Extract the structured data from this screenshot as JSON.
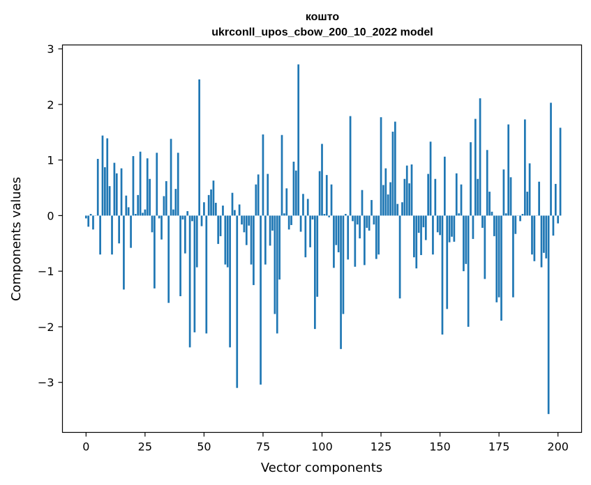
{
  "chart_data": {
    "type": "bar",
    "title_line1": "кошто",
    "title_line2": "ukrconll_upos_cbow_200_10_2022 model",
    "xlabel": "Vector components",
    "ylabel": "Components values",
    "xlim": [
      -10,
      210
    ],
    "ylim": [
      -3.9,
      3.07
    ],
    "xticks": [
      0,
      25,
      50,
      75,
      100,
      125,
      150,
      175,
      200
    ],
    "yticks": [
      -3,
      -2,
      -1,
      0,
      1,
      2,
      3
    ],
    "ytick_labels": [
      "−3",
      "−2",
      "−1",
      "0",
      "1",
      "2",
      "3"
    ],
    "bar_color": "#1f77b4",
    "grid": false,
    "values": [
      -0.05,
      -0.2,
      0.03,
      -0.25,
      0.0,
      1.02,
      -0.7,
      1.44,
      0.87,
      1.39,
      0.53,
      -0.7,
      0.95,
      0.76,
      -0.5,
      0.85,
      -1.33,
      0.36,
      0.15,
      -0.58,
      1.07,
      0.03,
      0.37,
      1.15,
      0.05,
      0.11,
      1.03,
      0.66,
      -0.3,
      -1.31,
      1.13,
      -0.05,
      -0.43,
      0.35,
      0.62,
      -1.57,
      1.38,
      0.11,
      0.48,
      1.13,
      -1.45,
      -0.07,
      -0.68,
      0.08,
      -2.37,
      -0.1,
      -2.1,
      -0.93,
      2.45,
      -0.19,
      0.24,
      -2.12,
      0.37,
      0.47,
      0.63,
      0.23,
      -0.51,
      -0.37,
      0.18,
      -0.88,
      -0.93,
      -2.37,
      0.41,
      0.1,
      -3.1,
      0.2,
      -0.16,
      -0.3,
      -0.53,
      -0.18,
      -0.88,
      -1.25,
      0.56,
      0.74,
      -3.04,
      1.46,
      -0.88,
      0.75,
      -0.54,
      -0.27,
      -1.77,
      -2.12,
      -1.15,
      1.45,
      0.04,
      0.49,
      -0.25,
      -0.17,
      0.97,
      0.81,
      2.72,
      -0.29,
      0.39,
      -0.75,
      0.3,
      -0.57,
      -0.07,
      -2.04,
      -1.46,
      0.8,
      1.29,
      0.03,
      0.73,
      -0.03,
      0.56,
      -0.94,
      -0.53,
      -0.66,
      -2.4,
      -1.77,
      0.03,
      -0.79,
      1.79,
      -0.1,
      -0.92,
      -0.16,
      -0.41,
      0.46,
      -0.89,
      -0.22,
      -0.27,
      0.28,
      -0.16,
      -0.78,
      -0.7,
      1.77,
      0.55,
      0.85,
      0.38,
      0.6,
      1.51,
      1.69,
      0.21,
      -1.49,
      0.24,
      0.66,
      0.9,
      0.58,
      0.92,
      -0.75,
      -0.95,
      -0.31,
      -0.71,
      -0.21,
      -0.44,
      0.75,
      1.33,
      -0.7,
      0.66,
      -0.3,
      -0.35,
      -2.14,
      1.06,
      -1.68,
      -0.48,
      -0.38,
      -0.47,
      0.76,
      0.04,
      0.56,
      -1.0,
      -0.87,
      -2.0,
      1.32,
      -0.42,
      1.74,
      0.66,
      2.11,
      -0.22,
      -1.14,
      1.18,
      0.43,
      0.07,
      -0.37,
      -1.56,
      -1.47,
      -1.89,
      0.83,
      0.04,
      1.64,
      0.69,
      -1.47,
      -0.33,
      0.0,
      -0.1,
      0.03,
      1.73,
      0.43,
      0.94,
      -0.7,
      -0.82,
      0.0,
      0.61,
      -0.93,
      -0.67,
      -0.77,
      -3.57,
      2.03,
      -0.36,
      0.57,
      -0.14,
      1.58
    ]
  }
}
